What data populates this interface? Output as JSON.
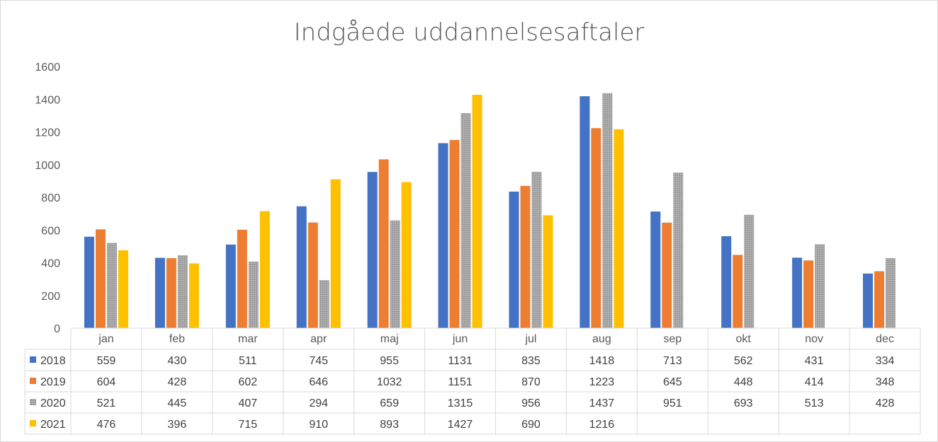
{
  "chart_data": {
    "type": "bar",
    "title": "Indgåede uddannelsesaftaler",
    "categories": [
      "jan",
      "feb",
      "mar",
      "apr",
      "maj",
      "jun",
      "jul",
      "aug",
      "sep",
      "okt",
      "nov",
      "dec"
    ],
    "ylim": [
      0,
      1600
    ],
    "yticks": [
      0,
      200,
      400,
      600,
      800,
      1000,
      1200,
      1400,
      1600
    ],
    "grid": false,
    "legend": "data-table",
    "series": [
      {
        "name": "2018",
        "color": "#4472c4",
        "values": [
          559,
          430,
          511,
          745,
          955,
          1131,
          835,
          1418,
          713,
          562,
          431,
          334
        ]
      },
      {
        "name": "2019",
        "color": "#ed7d31",
        "values": [
          604,
          428,
          602,
          646,
          1032,
          1151,
          870,
          1223,
          645,
          448,
          414,
          348
        ]
      },
      {
        "name": "2020",
        "color": "#a5a5a5",
        "values": [
          521,
          445,
          407,
          294,
          659,
          1315,
          956,
          1437,
          951,
          693,
          513,
          428
        ]
      },
      {
        "name": "2021",
        "color": "#ffc000",
        "values": [
          476,
          396,
          715,
          910,
          893,
          1427,
          690,
          1216,
          null,
          null,
          null,
          null
        ]
      }
    ]
  }
}
